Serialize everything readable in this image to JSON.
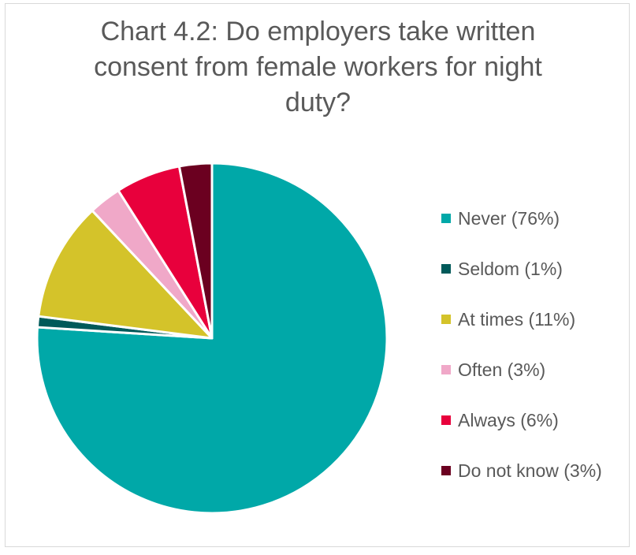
{
  "chart_data": {
    "type": "pie",
    "title_lines": [
      "Chart  4.2: Do employers take written",
      "consent from female workers for night",
      "duty?"
    ],
    "categories": [
      "Never (76%)",
      "Seldom (1%)",
      "At times (11%)",
      "Often (3%)",
      "Always (6%)",
      "Do not know (3%)"
    ],
    "values": [
      76,
      1,
      11,
      3,
      6,
      3
    ],
    "colors": [
      "#00A8A8",
      "#005A5A",
      "#D4C32A",
      "#F0A8C8",
      "#E8003C",
      "#6B0020"
    ],
    "start_angle": "12 o'clock",
    "direction": "clockwise",
    "legend": "right"
  }
}
